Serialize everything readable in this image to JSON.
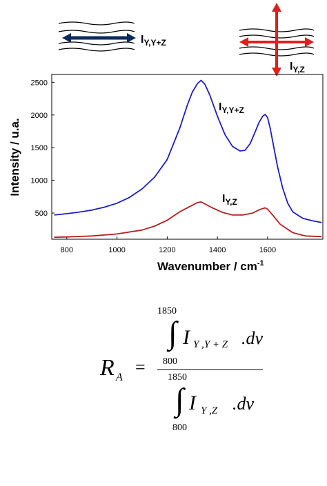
{
  "chart_data": {
    "type": "line",
    "xlabel": "Wavenumber  / cm",
    "xlabel_sup": "-1",
    "ylabel": "Intensity  /  u.a.",
    "xlim": [
      740,
      1820
    ],
    "ylim": [
      100,
      2620
    ],
    "x_ticks": [
      800,
      1000,
      1200,
      1400,
      1600
    ],
    "y_ticks": [
      500,
      1000,
      1500,
      2000,
      2500
    ],
    "grid": false,
    "series": [
      {
        "name": "I_Y,Y+Z",
        "label_main": "I",
        "label_sub": "Y,Y+Z",
        "color": "#1c1cc8",
        "x": [
          750,
          800,
          850,
          900,
          950,
          1000,
          1050,
          1100,
          1150,
          1200,
          1250,
          1280,
          1300,
          1320,
          1335,
          1350,
          1370,
          1400,
          1430,
          1460,
          1490,
          1510,
          1530,
          1550,
          1565,
          1580,
          1590,
          1600,
          1610,
          1625,
          1640,
          1660,
          1680,
          1700,
          1740,
          1780,
          1815
        ],
        "y": [
          470,
          490,
          515,
          545,
          590,
          650,
          740,
          870,
          1050,
          1320,
          1800,
          2150,
          2350,
          2480,
          2530,
          2470,
          2300,
          1980,
          1700,
          1520,
          1450,
          1460,
          1560,
          1740,
          1880,
          1980,
          2010,
          1960,
          1800,
          1500,
          1200,
          880,
          650,
          520,
          420,
          380,
          355
        ]
      },
      {
        "name": "I_Y,Z",
        "label_main": "I",
        "label_sub": "Y,Z",
        "color": "#b42020",
        "x": [
          750,
          800,
          900,
          1000,
          1100,
          1150,
          1200,
          1250,
          1300,
          1320,
          1335,
          1350,
          1380,
          1420,
          1460,
          1500,
          1540,
          1570,
          1590,
          1600,
          1620,
          1650,
          1700,
          1750,
          1815
        ],
        "y": [
          130,
          135,
          150,
          180,
          240,
          300,
          390,
          520,
          620,
          660,
          670,
          640,
          580,
          510,
          470,
          470,
          500,
          555,
          580,
          560,
          470,
          330,
          200,
          150,
          140
        ]
      }
    ]
  },
  "inset_left": {
    "label_main": "I",
    "label_sub": "Y,Y+Z",
    "arrow_color": "#0c2a5c"
  },
  "inset_right": {
    "label_main": "I",
    "label_sub": "Y,Z",
    "arrow_color": "#e21d1d"
  },
  "formula": {
    "lhs": "R",
    "lhs_sub": "A",
    "equals": "=",
    "upper_limit_top": "1850",
    "lower_limit_top": "800",
    "upper_limit_bottom": "1850",
    "lower_limit_bottom": "800",
    "integral_sign": "∫",
    "num_var": "I",
    "num_sub": "Y ,Y + Z",
    "den_var": "I",
    "den_sub": "Y ,Z",
    "differential": ".dv"
  }
}
